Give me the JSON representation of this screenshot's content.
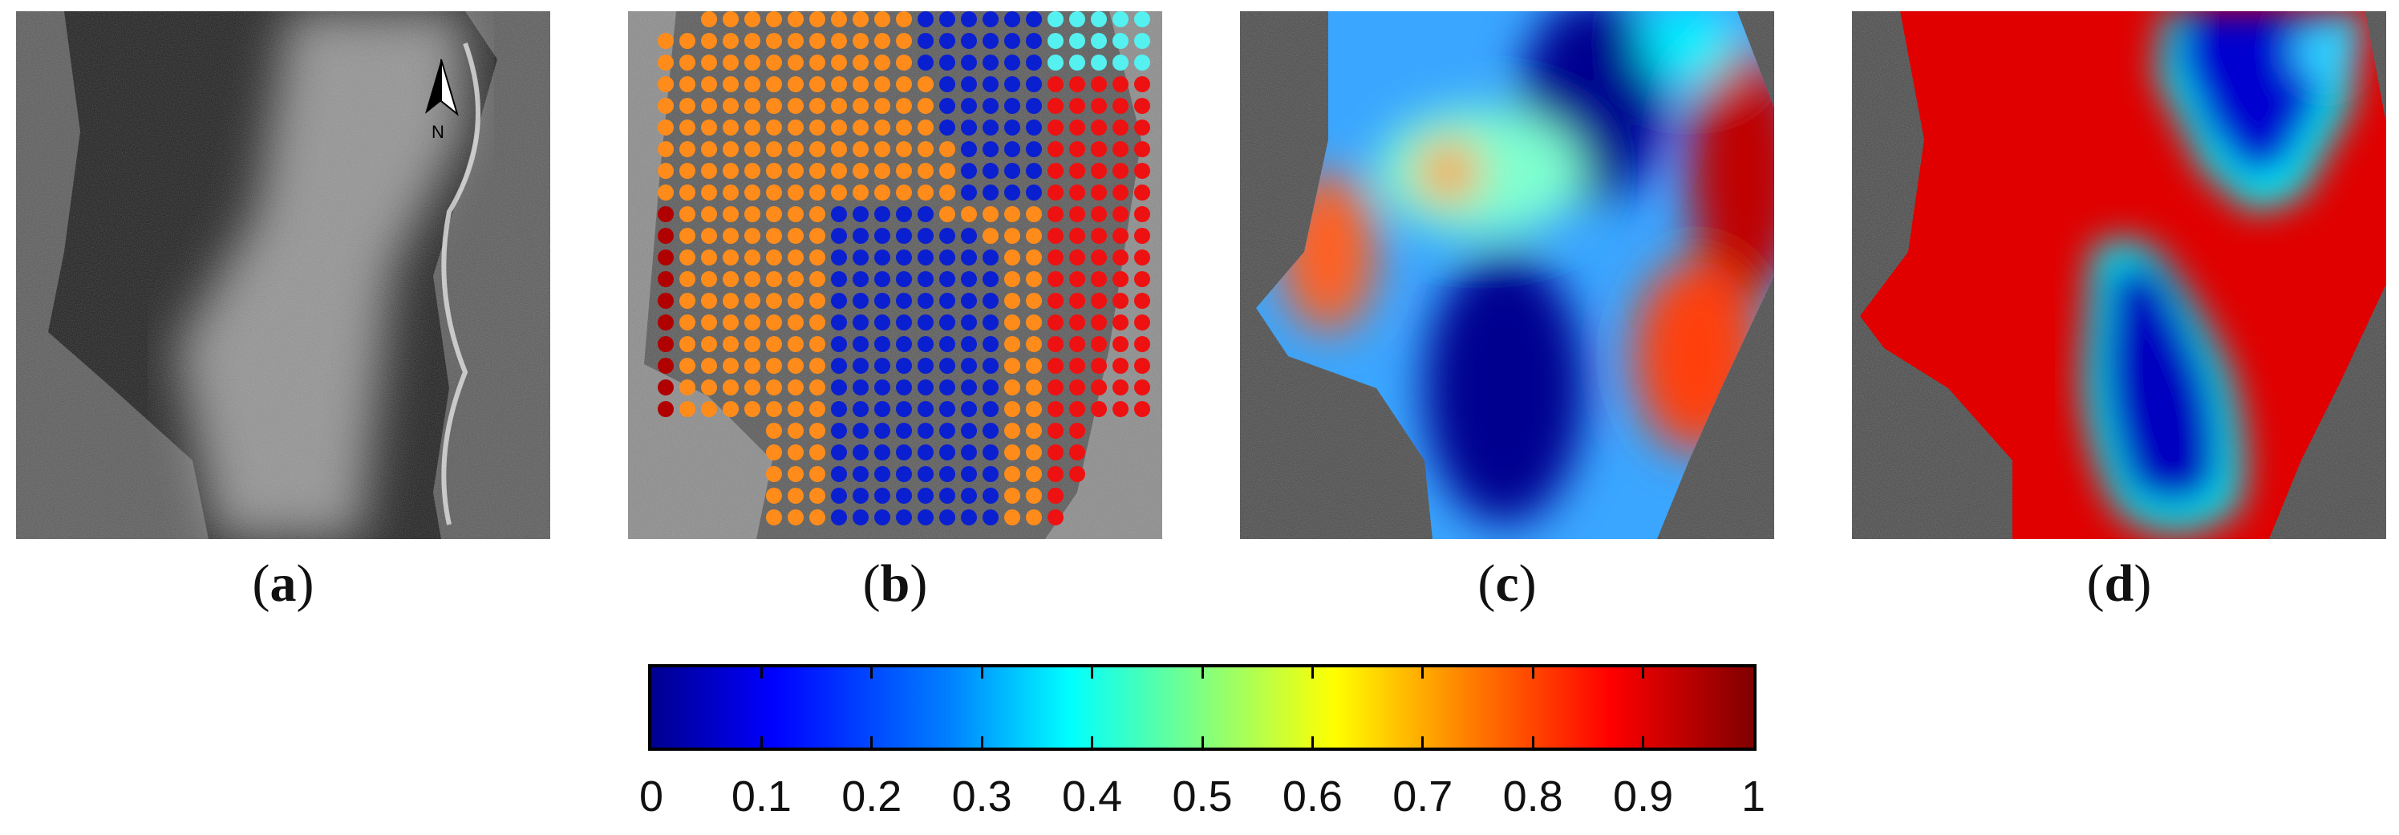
{
  "figure": {
    "panels": [
      {
        "id": "a",
        "label": "a",
        "content": "grayscale SAR image of water body with north arrow",
        "north_arrow": "N"
      },
      {
        "id": "b",
        "label": "b",
        "content": "SAR image overlaid with colored sample point grid"
      },
      {
        "id": "c",
        "label": "c",
        "content": "probability map (jet colormap) over SAR background"
      },
      {
        "id": "d",
        "label": "d",
        "content": "smoothed probability map (jet colormap) over SAR background"
      }
    ],
    "colorbar": {
      "colormap": "jet",
      "ticks": [
        "0",
        "0.1",
        "0.2",
        "0.3",
        "0.4",
        "0.5",
        "0.6",
        "0.7",
        "0.8",
        "0.9",
        "1"
      ],
      "range": [
        0,
        1
      ]
    },
    "point_colors": {
      "orange": "#ff8c1a",
      "blue": "#0a1fd0",
      "red": "#ee1111",
      "dark_red": "#b00000",
      "cyan": "#55f0f0"
    }
  }
}
